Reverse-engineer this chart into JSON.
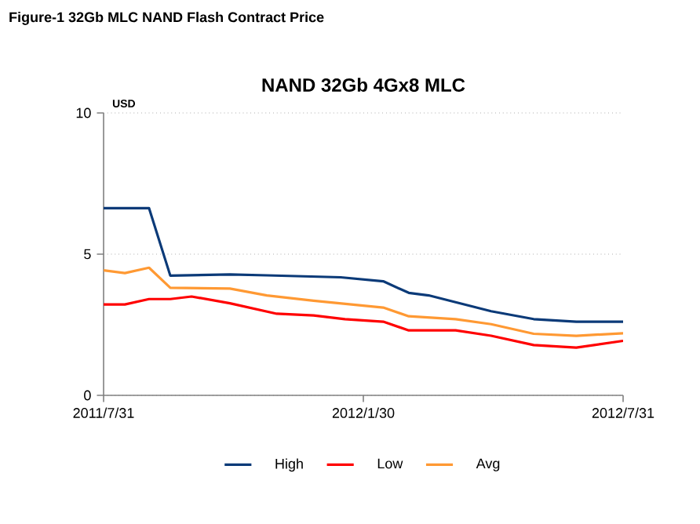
{
  "chart_data": {
    "type": "line",
    "title": "NAND 32Gb 4Gx8 MLC",
    "subtitle": "Figure-1 32Gb MLC NAND Flash Contract Price",
    "ylabel": "USD",
    "xlim": [
      "2011-07-31",
      "2012-07-31"
    ],
    "xticks": [
      {
        "value": "2011-07-31",
        "label": "2011/7/31"
      },
      {
        "value": "2012-01-30",
        "label": "2012/1/30"
      },
      {
        "value": "2012-07-31",
        "label": "2012/7/31"
      }
    ],
    "ylim": [
      0,
      10
    ],
    "yticks": [
      0,
      5,
      10
    ],
    "grid": "y",
    "legend": "bottom",
    "marker": "none",
    "line_style": "solid",
    "series": [
      {
        "name": "High",
        "color": "#0b3a78",
        "x": [
          "2011-07-31",
          "2011-09-01",
          "2011-09-16",
          "2011-10-28",
          "2011-11-23",
          "2012-01-14",
          "2012-02-13",
          "2012-03-02",
          "2012-03-16",
          "2012-04-04",
          "2012-04-29",
          "2012-05-29",
          "2012-06-28",
          "2012-07-31"
        ],
        "values": [
          6.63,
          6.63,
          4.24,
          4.28,
          4.25,
          4.18,
          4.04,
          3.63,
          3.54,
          3.3,
          2.98,
          2.7,
          2.61,
          2.61
        ]
      },
      {
        "name": "Low",
        "color": "#ff0000",
        "x": [
          "2011-07-31",
          "2011-08-15",
          "2011-09-01",
          "2011-09-16",
          "2011-10-01",
          "2011-10-28",
          "2011-11-30",
          "2011-12-26",
          "2012-01-17",
          "2012-02-13",
          "2012-03-02",
          "2012-04-04",
          "2012-04-29",
          "2012-05-29",
          "2012-06-28",
          "2012-07-31"
        ],
        "values": [
          3.22,
          3.22,
          3.41,
          3.41,
          3.5,
          3.26,
          2.89,
          2.83,
          2.7,
          2.61,
          2.3,
          2.3,
          2.11,
          1.78,
          1.69,
          1.93
        ]
      },
      {
        "name": "Avg",
        "color": "#ff9933",
        "x": [
          "2011-07-31",
          "2011-08-15",
          "2011-09-01",
          "2011-09-16",
          "2011-10-28",
          "2011-11-23",
          "2011-12-26",
          "2012-02-13",
          "2012-03-02",
          "2012-04-04",
          "2012-04-29",
          "2012-05-29",
          "2012-06-28",
          "2012-07-31"
        ],
        "values": [
          4.43,
          4.33,
          4.52,
          3.81,
          3.78,
          3.54,
          3.35,
          3.11,
          2.8,
          2.7,
          2.52,
          2.18,
          2.11,
          2.2
        ]
      }
    ]
  }
}
